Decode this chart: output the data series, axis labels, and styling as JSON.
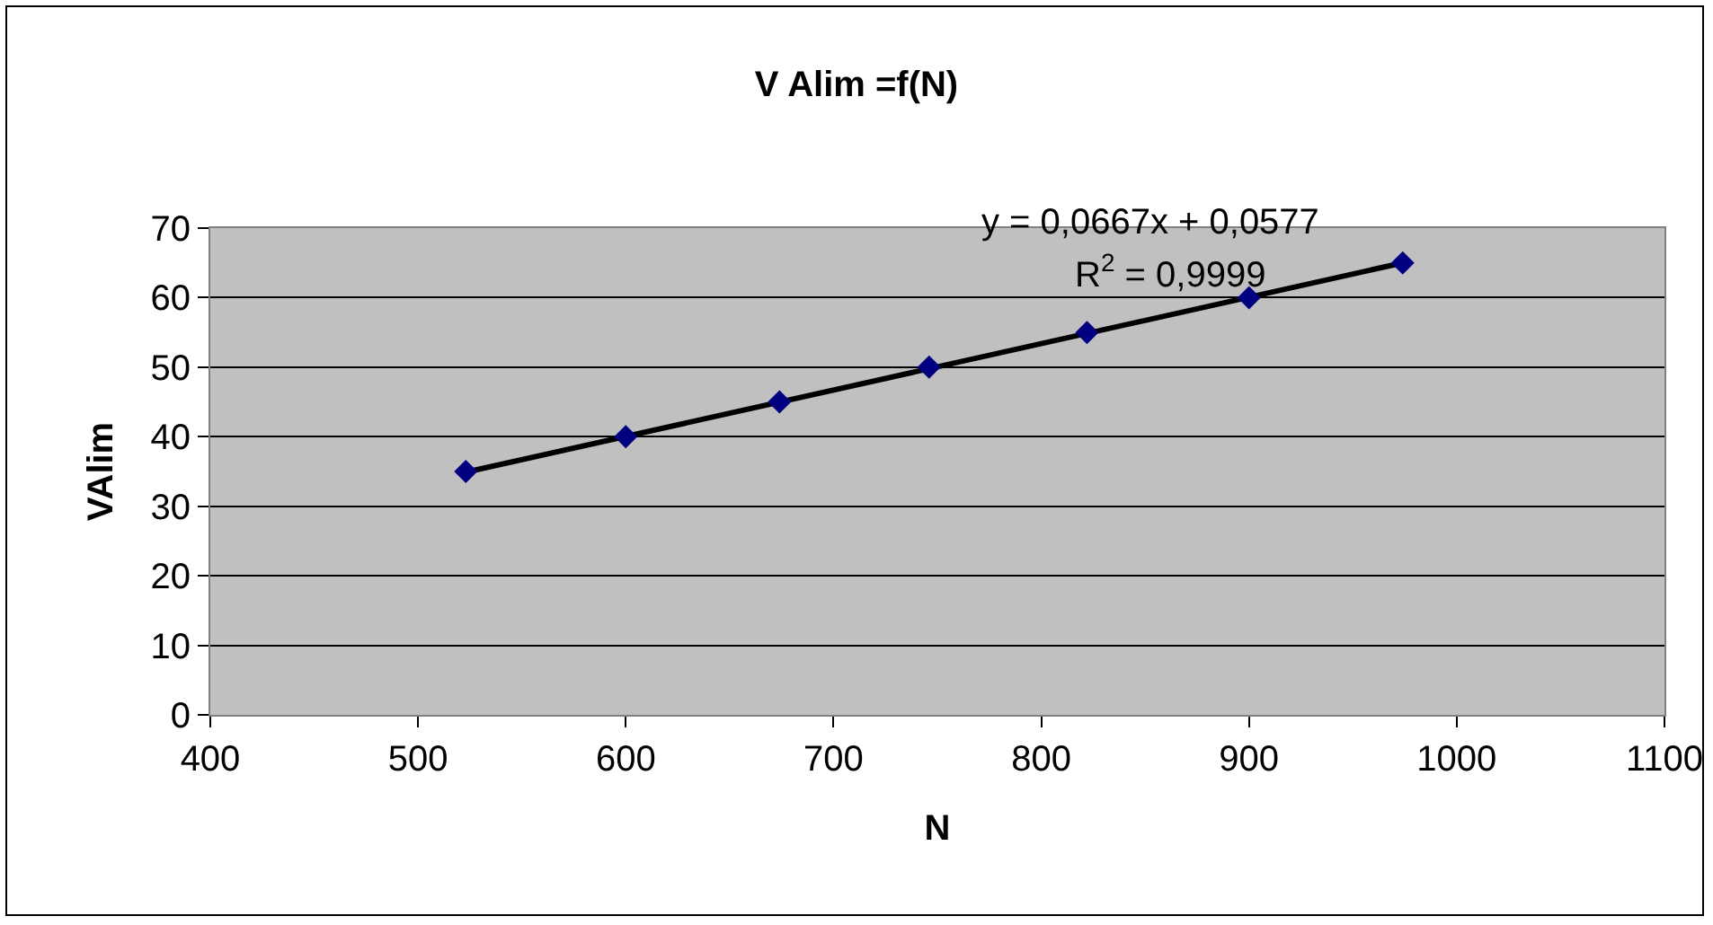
{
  "chart_data": {
    "type": "scatter",
    "title": "V Alim =f(N)",
    "xlabel": "N",
    "ylabel": "VAlim",
    "xlim": [
      400,
      1100
    ],
    "xticks": [
      400,
      500,
      600,
      700,
      800,
      900,
      1000,
      1100
    ],
    "ylim": [
      0,
      70
    ],
    "yticks": [
      0,
      10,
      20,
      30,
      40,
      50,
      60,
      70
    ],
    "grid": "y",
    "marker": "diamond",
    "series": [
      {
        "type": "scatter",
        "color": "#000080",
        "x": [
          523,
          600,
          674,
          746,
          822,
          900,
          974
        ],
        "values": [
          35,
          40,
          45,
          50,
          55,
          60,
          65
        ]
      },
      {
        "type": "line",
        "color": "#000000",
        "marker": "none",
        "line_style": "solid",
        "x": [
          523,
          974
        ],
        "values": [
          34.9,
          65.0
        ]
      }
    ],
    "annotations": [
      "y = 0,0667x + 0,0577",
      "R$^{2}$ = 0,9999"
    ]
  }
}
